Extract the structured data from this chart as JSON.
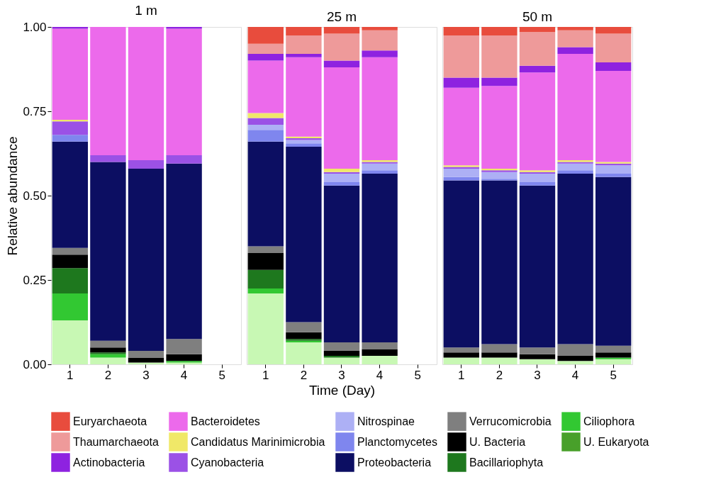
{
  "chart_data": [
    {
      "type": "bar",
      "stacked": true,
      "title": "1 m",
      "ylabel": "Relative abundance",
      "legend": "bottom",
      "categories": [
        "1",
        "2",
        "3",
        "4",
        "5"
      ],
      "ylim": [
        0,
        1
      ],
      "yticks": [
        {
          "value": 0,
          "label": "0.00"
        },
        {
          "value": 0.25,
          "label": "0.25"
        },
        {
          "value": 0.5,
          "label": "0.50"
        },
        {
          "value": 0.75,
          "label": "0.75"
        },
        {
          "value": 1,
          "label": "1.00"
        }
      ],
      "grid": false,
      "series": [
        {
          "color": "#c8f8b4",
          "values": [
            0.13,
            0.02,
            0.005,
            0.005,
            null
          ]
        },
        {
          "name": "U. Eukaryota",
          "color": "#48a02a",
          "values": [
            0,
            0,
            0,
            0,
            null
          ]
        },
        {
          "name": "Ciliophora",
          "color": "#32c832",
          "values": [
            0.08,
            0.01,
            0,
            0.005,
            null
          ]
        },
        {
          "name": "Bacillariophyta",
          "color": "#1e781e",
          "values": [
            0.075,
            0.005,
            0,
            0,
            null
          ]
        },
        {
          "name": "U. Bacteria",
          "color": "#000000",
          "values": [
            0.04,
            0.015,
            0.015,
            0.02,
            null
          ]
        },
        {
          "name": "Verrucomicrobia",
          "color": "#7f7f7f",
          "values": [
            0.02,
            0.02,
            0.02,
            0.045,
            null
          ]
        },
        {
          "name": "Proteobacteria",
          "color": "#0c0e62",
          "values": [
            0.315,
            0.53,
            0.54,
            0.52,
            null
          ]
        },
        {
          "name": "Planctomycetes",
          "color": "#7f86ee",
          "values": [
            0.02,
            0,
            0,
            0,
            null
          ]
        },
        {
          "name": "Nitrospinae",
          "color": "#adb0f5",
          "values": [
            0,
            0,
            0,
            0,
            null
          ]
        },
        {
          "name": "Cyanobacteria",
          "color": "#9b51e6",
          "values": [
            0.04,
            0.02,
            0.025,
            0.025,
            null
          ]
        },
        {
          "name": "Candidatus Marinimicrobia",
          "color": "#f0e868",
          "values": [
            0.005,
            0,
            0,
            0,
            null
          ]
        },
        {
          "name": "Bacteroidetes",
          "color": "#ec6aeb",
          "values": [
            0.27,
            0.38,
            0.395,
            0.375,
            null
          ]
        },
        {
          "name": "Actinobacteria",
          "color": "#8e22e0",
          "values": [
            0.005,
            0,
            0,
            0.005,
            null
          ]
        },
        {
          "name": "Thaumarchaeota",
          "color": "#ee9a9a",
          "values": [
            0,
            0,
            0,
            0,
            null
          ]
        },
        {
          "name": "Euryarchaeota",
          "color": "#e84c3d",
          "values": [
            0,
            0,
            0,
            0,
            null
          ]
        }
      ]
    },
    {
      "type": "bar",
      "stacked": true,
      "title": "25 m",
      "xlabel": "Time (Day)",
      "tick_labels": "x",
      "categories": [
        "1",
        "2",
        "3",
        "4",
        "5"
      ],
      "ylim": [
        0,
        1
      ],
      "grid": false,
      "series": [
        {
          "color": "#c8f8b4",
          "values": [
            0.21,
            0.065,
            0.02,
            0.025,
            null
          ]
        },
        {
          "color": "#48a02a",
          "values": [
            0,
            0,
            0,
            0,
            null
          ]
        },
        {
          "color": "#32c832",
          "values": [
            0.015,
            0.005,
            0,
            0,
            null
          ]
        },
        {
          "color": "#1e781e",
          "values": [
            0.055,
            0.005,
            0.005,
            0,
            null
          ]
        },
        {
          "color": "#000000",
          "values": [
            0.05,
            0.02,
            0.015,
            0.02,
            null
          ]
        },
        {
          "color": "#7f7f7f",
          "values": [
            0.02,
            0.03,
            0.025,
            0.02,
            null
          ]
        },
        {
          "color": "#0c0e62",
          "values": [
            0.31,
            0.52,
            0.465,
            0.5,
            null
          ]
        },
        {
          "color": "#7f86ee",
          "values": [
            0.035,
            0.01,
            0.01,
            0.01,
            null
          ]
        },
        {
          "color": "#adb0f5",
          "values": [
            0.015,
            0.01,
            0.025,
            0.02,
            null
          ]
        },
        {
          "color": "#9b51e6",
          "values": [
            0.02,
            0.005,
            0.005,
            0.005,
            null
          ]
        },
        {
          "color": "#f0e868",
          "values": [
            0.015,
            0.005,
            0.01,
            0.005,
            null
          ]
        },
        {
          "color": "#ec6aeb",
          "values": [
            0.155,
            0.235,
            0.3,
            0.305,
            null
          ]
        },
        {
          "color": "#8e22e0",
          "values": [
            0.02,
            0.01,
            0.02,
            0.02,
            null
          ]
        },
        {
          "color": "#ee9a9a",
          "values": [
            0.03,
            0.055,
            0.08,
            0.06,
            null
          ]
        },
        {
          "color": "#e84c3d",
          "values": [
            0.05,
            0.025,
            0.02,
            0.01,
            null
          ]
        }
      ]
    },
    {
      "type": "bar",
      "stacked": true,
      "title": "50 m",
      "tick_labels": "x",
      "categories": [
        "1",
        "2",
        "3",
        "4",
        "5"
      ],
      "ylim": [
        0,
        1
      ],
      "grid": false,
      "series": [
        {
          "color": "#c8f8b4",
          "values": [
            0.02,
            0.02,
            0.015,
            0.01,
            0.015
          ]
        },
        {
          "color": "#48a02a",
          "values": [
            0,
            0,
            0,
            0,
            0
          ]
        },
        {
          "color": "#32c832",
          "values": [
            0,
            0,
            0,
            0,
            0.005
          ]
        },
        {
          "color": "#1e781e",
          "values": [
            0,
            0,
            0,
            0,
            0
          ]
        },
        {
          "color": "#000000",
          "values": [
            0.015,
            0.015,
            0.015,
            0.015,
            0.015
          ]
        },
        {
          "color": "#7f7f7f",
          "values": [
            0.015,
            0.025,
            0.02,
            0.035,
            0.02
          ]
        },
        {
          "color": "#0c0e62",
          "values": [
            0.495,
            0.485,
            0.48,
            0.505,
            0.5
          ]
        },
        {
          "color": "#7f86ee",
          "values": [
            0.01,
            0.005,
            0.01,
            0.01,
            0.01
          ]
        },
        {
          "color": "#adb0f5",
          "values": [
            0.025,
            0.02,
            0.025,
            0.02,
            0.025
          ]
        },
        {
          "color": "#9b51e6",
          "values": [
            0.005,
            0.005,
            0.005,
            0.005,
            0.005
          ]
        },
        {
          "color": "#f0e868",
          "values": [
            0.005,
            0.005,
            0.005,
            0.005,
            0.005
          ]
        },
        {
          "color": "#ec6aeb",
          "values": [
            0.23,
            0.245,
            0.29,
            0.315,
            0.27
          ]
        },
        {
          "color": "#8e22e0",
          "values": [
            0.03,
            0.025,
            0.02,
            0.02,
            0.025
          ]
        },
        {
          "color": "#ee9a9a",
          "values": [
            0.125,
            0.125,
            0.1,
            0.05,
            0.085
          ]
        },
        {
          "color": "#e84c3d",
          "values": [
            0.025,
            0.025,
            0.015,
            0.01,
            0.02
          ]
        }
      ]
    }
  ]
}
